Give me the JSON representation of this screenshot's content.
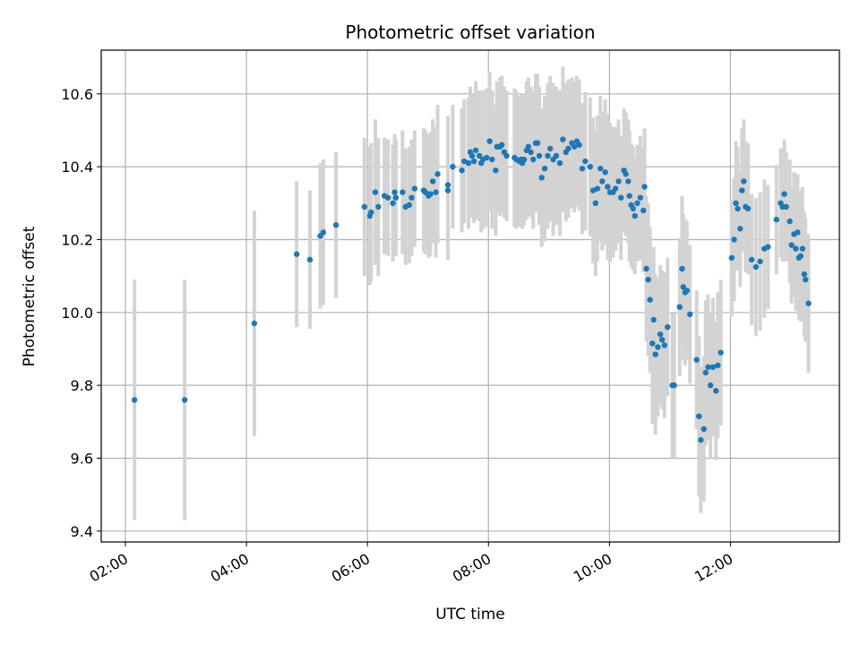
{
  "chart_data": {
    "type": "scatter",
    "title": "Photometric offset variation",
    "xlabel": "UTC time",
    "ylabel": "Photometric offset",
    "x_unit": "hours (UTC)",
    "xlim": [
      1.6,
      13.8
    ],
    "ylim": [
      9.37,
      10.72
    ],
    "grid": true,
    "x_ticks": [
      2,
      4,
      6,
      8,
      10,
      12
    ],
    "x_tick_labels": [
      "02:00",
      "04:00",
      "06:00",
      "08:00",
      "10:00",
      "12:00"
    ],
    "y_ticks": [
      9.4,
      9.6,
      9.8,
      10.0,
      10.2,
      10.4,
      10.6
    ],
    "y_tick_labels": [
      "9.4",
      "9.6",
      "9.8",
      "10.0",
      "10.2",
      "10.4",
      "10.6"
    ],
    "colors": {
      "points": "#1f77b4",
      "error_bars": "#d3d3d3",
      "grid": "#b0b0b0"
    },
    "points": [
      [
        2.15,
        9.76,
        0.33
      ],
      [
        2.98,
        9.76,
        0.33
      ],
      [
        4.13,
        9.97,
        0.31
      ],
      [
        4.83,
        10.16,
        0.2
      ],
      [
        5.05,
        10.145,
        0.19
      ],
      [
        5.22,
        10.21,
        0.2
      ],
      [
        5.27,
        10.22,
        0.2
      ],
      [
        5.48,
        10.24,
        0.2
      ],
      [
        5.95,
        10.29,
        0.19
      ],
      [
        6.04,
        10.265,
        0.19
      ],
      [
        6.06,
        10.275,
        0.19
      ],
      [
        6.13,
        10.33,
        0.2
      ],
      [
        6.18,
        10.29,
        0.19
      ],
      [
        6.28,
        10.32,
        0.16
      ],
      [
        6.34,
        10.315,
        0.16
      ],
      [
        6.42,
        10.3,
        0.16
      ],
      [
        6.45,
        10.33,
        0.16
      ],
      [
        6.47,
        10.315,
        0.16
      ],
      [
        6.58,
        10.33,
        0.17
      ],
      [
        6.63,
        10.29,
        0.16
      ],
      [
        6.69,
        10.295,
        0.16
      ],
      [
        6.73,
        10.315,
        0.16
      ],
      [
        6.78,
        10.34,
        0.16
      ],
      [
        6.93,
        10.335,
        0.17
      ],
      [
        6.96,
        10.33,
        0.17
      ],
      [
        7.01,
        10.32,
        0.17
      ],
      [
        7.04,
        10.325,
        0.17
      ],
      [
        7.08,
        10.36,
        0.17
      ],
      [
        7.13,
        10.33,
        0.18
      ],
      [
        7.16,
        10.38,
        0.19
      ],
      [
        7.33,
        10.35,
        0.19
      ],
      [
        7.33,
        10.335,
        0.19
      ],
      [
        7.41,
        10.4,
        0.17
      ],
      [
        7.56,
        10.39,
        0.17
      ],
      [
        7.6,
        10.415,
        0.17
      ],
      [
        7.67,
        10.41,
        0.18
      ],
      [
        7.7,
        10.44,
        0.18
      ],
      [
        7.73,
        10.43,
        0.17
      ],
      [
        7.76,
        10.415,
        0.17
      ],
      [
        7.79,
        10.445,
        0.19
      ],
      [
        7.85,
        10.43,
        0.18
      ],
      [
        7.88,
        10.41,
        0.19
      ],
      [
        7.91,
        10.42,
        0.19
      ],
      [
        7.97,
        10.425,
        0.19
      ],
      [
        8.02,
        10.47,
        0.19
      ],
      [
        8.06,
        10.42,
        0.19
      ],
      [
        8.12,
        10.39,
        0.18
      ],
      [
        8.14,
        10.455,
        0.18
      ],
      [
        8.19,
        10.455,
        0.19
      ],
      [
        8.22,
        10.46,
        0.19
      ],
      [
        8.26,
        10.44,
        0.18
      ],
      [
        8.3,
        10.43,
        0.18
      ],
      [
        8.43,
        10.425,
        0.19
      ],
      [
        8.46,
        10.42,
        0.19
      ],
      [
        8.51,
        10.415,
        0.18
      ],
      [
        8.54,
        10.42,
        0.18
      ],
      [
        8.56,
        10.41,
        0.18
      ],
      [
        8.59,
        10.42,
        0.18
      ],
      [
        8.63,
        10.445,
        0.19
      ],
      [
        8.66,
        10.455,
        0.19
      ],
      [
        8.7,
        10.44,
        0.18
      ],
      [
        8.74,
        10.42,
        0.19
      ],
      [
        8.78,
        10.465,
        0.19
      ],
      [
        8.81,
        10.465,
        0.19
      ],
      [
        8.84,
        10.43,
        0.19
      ],
      [
        8.88,
        10.37,
        0.19
      ],
      [
        8.93,
        10.395,
        0.2
      ],
      [
        8.98,
        10.43,
        0.2
      ],
      [
        9.02,
        10.45,
        0.2
      ],
      [
        9.07,
        10.42,
        0.21
      ],
      [
        9.12,
        10.43,
        0.19
      ],
      [
        9.18,
        10.41,
        0.2
      ],
      [
        9.23,
        10.475,
        0.2
      ],
      [
        9.28,
        10.44,
        0.19
      ],
      [
        9.32,
        10.45,
        0.19
      ],
      [
        9.38,
        10.465,
        0.18
      ],
      [
        9.42,
        10.455,
        0.18
      ],
      [
        9.46,
        10.47,
        0.18
      ],
      [
        9.5,
        10.46,
        0.18
      ],
      [
        9.55,
        10.395,
        0.18
      ],
      [
        9.6,
        10.415,
        0.19
      ],
      [
        9.68,
        10.4,
        0.19
      ],
      [
        9.73,
        10.335,
        0.2
      ],
      [
        9.77,
        10.3,
        0.2
      ],
      [
        9.8,
        10.34,
        0.2
      ],
      [
        9.85,
        10.395,
        0.2
      ],
      [
        9.88,
        10.36,
        0.19
      ],
      [
        9.93,
        10.385,
        0.2
      ],
      [
        9.97,
        10.345,
        0.2
      ],
      [
        10.01,
        10.33,
        0.19
      ],
      [
        10.06,
        10.33,
        0.18
      ],
      [
        10.1,
        10.34,
        0.17
      ],
      [
        10.15,
        10.36,
        0.17
      ],
      [
        10.19,
        10.315,
        0.17
      ],
      [
        10.24,
        10.39,
        0.17
      ],
      [
        10.27,
        10.38,
        0.17
      ],
      [
        10.31,
        10.36,
        0.17
      ],
      [
        10.33,
        10.32,
        0.18
      ],
      [
        10.36,
        10.295,
        0.17
      ],
      [
        10.39,
        10.285,
        0.17
      ],
      [
        10.42,
        10.265,
        0.16
      ],
      [
        10.46,
        10.3,
        0.16
      ],
      [
        10.51,
        10.315,
        0.17
      ],
      [
        10.56,
        10.28,
        0.17
      ],
      [
        10.58,
        10.345,
        0.16
      ],
      [
        10.61,
        10.12,
        0.2
      ],
      [
        10.64,
        10.09,
        0.21
      ],
      [
        10.67,
        10.035,
        0.2
      ],
      [
        10.71,
        9.915,
        0.22
      ],
      [
        10.73,
        9.98,
        0.2
      ],
      [
        10.76,
        9.885,
        0.22
      ],
      [
        10.8,
        9.905,
        0.19
      ],
      [
        10.84,
        9.94,
        0.19
      ],
      [
        10.87,
        9.925,
        0.19
      ],
      [
        10.91,
        9.91,
        0.2
      ],
      [
        10.96,
        9.96,
        0.19
      ],
      [
        11.04,
        9.8,
        0.2
      ],
      [
        11.07,
        9.8,
        0.2
      ],
      [
        11.16,
        10.015,
        0.19
      ],
      [
        11.2,
        10.12,
        0.2
      ],
      [
        11.22,
        10.07,
        0.2
      ],
      [
        11.25,
        10.055,
        0.2
      ],
      [
        11.28,
        10.06,
        0.19
      ],
      [
        11.33,
        9.995,
        0.19
      ],
      [
        11.44,
        9.87,
        0.19
      ],
      [
        11.48,
        9.715,
        0.22
      ],
      [
        11.51,
        9.65,
        0.2
      ],
      [
        11.56,
        9.68,
        0.2
      ],
      [
        11.59,
        9.835,
        0.2
      ],
      [
        11.63,
        9.85,
        0.2
      ],
      [
        11.67,
        9.8,
        0.2
      ],
      [
        11.71,
        9.85,
        0.19
      ],
      [
        11.76,
        9.785,
        0.19
      ],
      [
        11.79,
        9.855,
        0.2
      ],
      [
        11.84,
        9.89,
        0.2
      ],
      [
        12.02,
        10.15,
        0.16
      ],
      [
        12.06,
        10.2,
        0.17
      ],
      [
        12.09,
        10.3,
        0.17
      ],
      [
        12.12,
        10.285,
        0.17
      ],
      [
        12.16,
        10.23,
        0.16
      ],
      [
        12.19,
        10.335,
        0.17
      ],
      [
        12.22,
        10.36,
        0.17
      ],
      [
        12.25,
        10.29,
        0.18
      ],
      [
        12.29,
        10.285,
        0.18
      ],
      [
        12.35,
        10.145,
        0.18
      ],
      [
        12.42,
        10.125,
        0.19
      ],
      [
        12.49,
        10.14,
        0.19
      ],
      [
        12.56,
        10.175,
        0.19
      ],
      [
        12.62,
        10.18,
        0.17
      ],
      [
        12.76,
        10.255,
        0.15
      ],
      [
        12.83,
        10.3,
        0.15
      ],
      [
        12.86,
        10.29,
        0.15
      ],
      [
        12.89,
        10.325,
        0.15
      ],
      [
        12.92,
        10.29,
        0.15
      ],
      [
        12.98,
        10.25,
        0.17
      ],
      [
        13.01,
        10.185,
        0.16
      ],
      [
        13.05,
        10.215,
        0.17
      ],
      [
        13.08,
        10.175,
        0.17
      ],
      [
        13.11,
        10.22,
        0.16
      ],
      [
        13.13,
        10.15,
        0.17
      ],
      [
        13.16,
        10.155,
        0.18
      ],
      [
        13.19,
        10.175,
        0.17
      ],
      [
        13.22,
        10.105,
        0.17
      ],
      [
        13.24,
        10.09,
        0.17
      ],
      [
        13.29,
        10.025,
        0.19
      ]
    ]
  }
}
